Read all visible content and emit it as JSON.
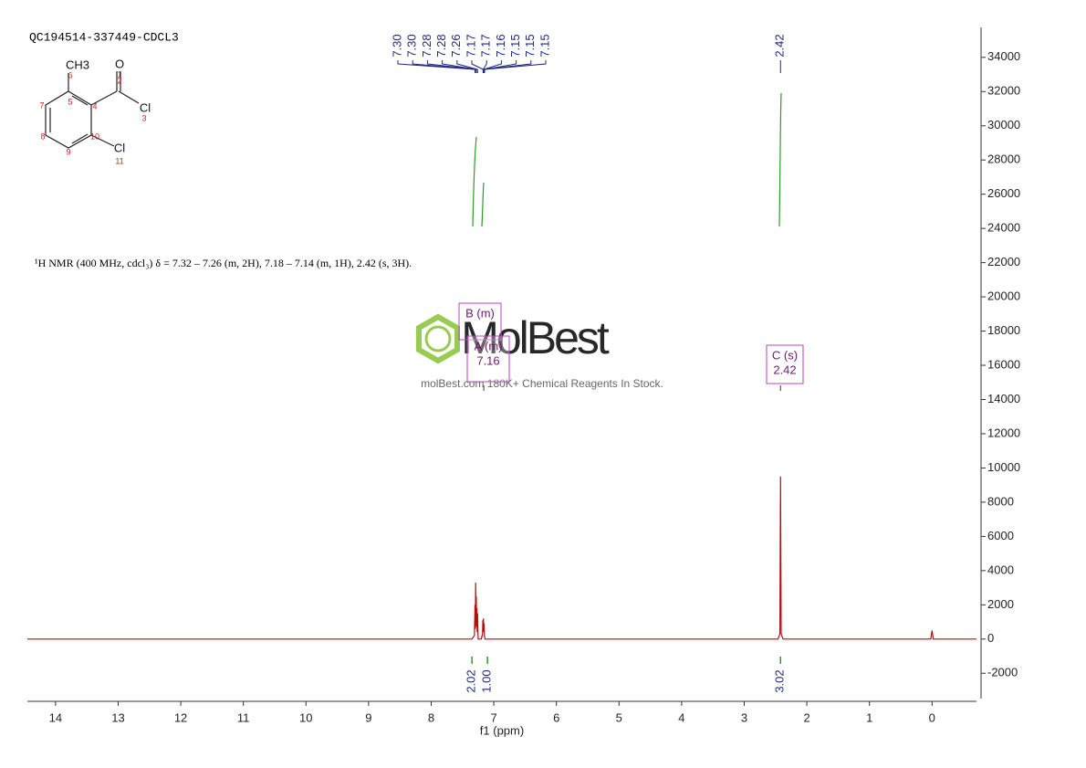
{
  "sample_id": "QC194514-337449-CDCL3",
  "description": "¹H NMR (400 MHz, cdcl₃) δ = 7.32 – 7.26 (m, 2H), 7.18 – 7.14 (m, 1H), 2.42 (s, 3H).",
  "structure": {
    "atoms": [
      "CH3",
      "O",
      "Cl",
      "Cl"
    ],
    "numbers": [
      1,
      2,
      3,
      4,
      5,
      6,
      7,
      8,
      9,
      10,
      11
    ]
  },
  "watermark": {
    "logo": "MolBest",
    "tagline": "molBest.com 180K+ Chemical Reagents In Stock."
  },
  "chart_data": {
    "type": "line",
    "x_label": "f1 (ppm)",
    "color": "#b01010",
    "xlim": [
      14.45,
      -0.71
    ],
    "xticks": [
      14,
      13,
      12,
      11,
      10,
      9,
      8,
      7,
      6,
      5,
      4,
      3,
      2,
      1,
      0
    ],
    "ylim": [
      -3480,
      35750
    ],
    "yticks": [
      -2000,
      0,
      2000,
      4000,
      6000,
      8000,
      10000,
      12000,
      14000,
      16000,
      18000,
      20000,
      22000,
      24000,
      26000,
      28000,
      30000,
      32000,
      34000
    ],
    "x": [
      14.45,
      7.35,
      7.31,
      7.3,
      7.295,
      7.29,
      7.285,
      7.28,
      7.275,
      7.27,
      7.265,
      7.26,
      7.25,
      7.2,
      7.18,
      7.175,
      7.17,
      7.165,
      7.16,
      7.155,
      7.15,
      7.14,
      7.1,
      2.46,
      2.43,
      2.42,
      2.41,
      2.38,
      0.02,
      0.0,
      -0.02,
      -0.71
    ],
    "values": [
      0,
      0,
      200,
      2000,
      600,
      3300,
      800,
      2500,
      700,
      1800,
      400,
      1500,
      0,
      0,
      300,
      1100,
      500,
      1200,
      400,
      900,
      200,
      0,
      0,
      0,
      300,
      9500,
      300,
      0,
      0,
      500,
      0,
      0
    ],
    "peaks": {
      "values": [
        7.3,
        7.3,
        7.28,
        7.28,
        7.26,
        7.17,
        7.17,
        7.16,
        7.15,
        7.15,
        7.15,
        2.42
      ],
      "value_labels": [
        "7.30",
        "7.30",
        "7.28",
        "7.28",
        "7.26",
        "7.17",
        "7.17",
        "7.16",
        "7.15",
        "7.15",
        "7.15",
        "2.42"
      ]
    },
    "integrals": {
      "x": [
        7.29,
        7.16,
        2.42
      ],
      "values": [
        2.02,
        1.0,
        3.02
      ],
      "value_labels": [
        "2.02",
        "1.00",
        "3.02"
      ]
    },
    "multiplets": [
      {
        "name": "B (m)"
      },
      {
        "name": "A (m)",
        "shift": 7.16
      },
      {
        "name": "C (s)",
        "shift": 2.42
      }
    ]
  }
}
